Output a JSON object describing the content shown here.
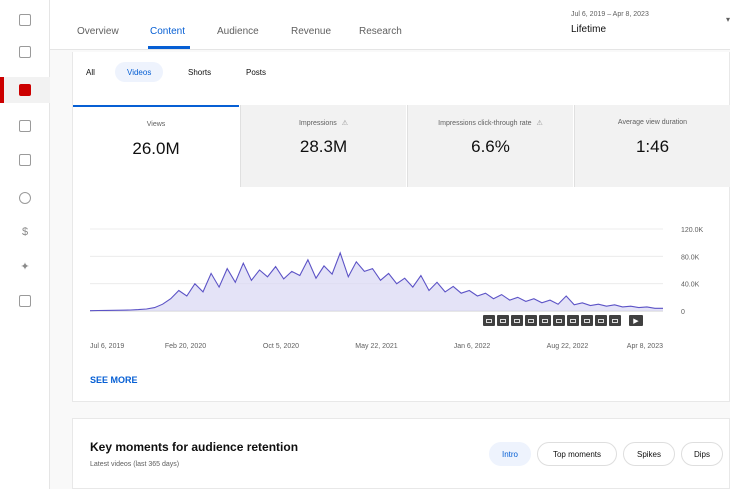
{
  "header": {
    "tabs": [
      {
        "label": "Overview",
        "active": false
      },
      {
        "label": "Content",
        "active": true
      },
      {
        "label": "Audience",
        "active": false
      },
      {
        "label": "Revenue",
        "active": false
      },
      {
        "label": "Research",
        "active": false
      }
    ],
    "date_range": "Jul 6, 2019 – Apr 8, 2023",
    "period": "Lifetime"
  },
  "filters": [
    {
      "label": "All",
      "selected": false
    },
    {
      "label": "Videos",
      "selected": true
    },
    {
      "label": "Shorts",
      "selected": false
    },
    {
      "label": "Posts",
      "selected": false
    }
  ],
  "metrics": [
    {
      "label": "Views",
      "value": "26.0M",
      "warning": false
    },
    {
      "label": "Impressions",
      "value": "28.3M",
      "warning": true
    },
    {
      "label": "Impressions click-through rate",
      "value": "6.6%",
      "warning": true
    },
    {
      "label": "Average view duration",
      "value": "1:46",
      "warning": false
    }
  ],
  "chart_data": {
    "type": "area",
    "y_tick_labels": [
      "120.0K",
      "80.0K",
      "40.0K",
      "0"
    ],
    "y_ticks": [
      120000,
      80000,
      40000,
      0
    ],
    "ylim": [
      0,
      120000
    ],
    "x_tick_labels": [
      "Jul 6, 2019",
      "Feb 20, 2020",
      "Oct 5, 2020",
      "May 22, 2021",
      "Jan 6, 2022",
      "Aug 22, 2022",
      "Apr 8, 2023"
    ],
    "grid": true,
    "series": [
      {
        "values": [
          500,
          700,
          900,
          1000,
          1200,
          1500,
          2000,
          3000,
          5000,
          10000,
          18000,
          30000,
          22000,
          40000,
          28000,
          55000,
          35000,
          62000,
          42000,
          70000,
          45000,
          60000,
          50000,
          65000,
          47000,
          58000,
          52000,
          75000,
          48000,
          66000,
          54000,
          85000,
          50000,
          72000,
          58000,
          62000,
          45000,
          55000,
          40000,
          48000,
          35000,
          52000,
          30000,
          42000,
          28000,
          36000,
          26000,
          30000,
          22000,
          26000,
          18000,
          24000,
          16000,
          20000,
          14000,
          18000,
          12000,
          16000,
          10000,
          22000,
          9000,
          12000,
          8000,
          10000,
          7000,
          9000,
          6000,
          7000,
          5000,
          6000,
          4000,
          4000
        ]
      }
    ],
    "color": "#5c53c6"
  },
  "chart_controls": {
    "play_icon": "play-icon",
    "count": 10
  },
  "see_more_label": "SEE MORE",
  "key_moments": {
    "title": "Key moments for audience retention",
    "subtitle": "Latest videos (last 365 days)",
    "chips": [
      {
        "label": "Intro",
        "selected": true
      },
      {
        "label": "Top moments",
        "selected": false
      },
      {
        "label": "Spikes",
        "selected": false
      },
      {
        "label": "Dips",
        "selected": false
      }
    ]
  },
  "sidebar": {
    "icons": [
      "dashboard-icon",
      "content-icon",
      "analytics-icon",
      "comments-icon",
      "subtitles-icon",
      "copyright-icon",
      "earn-icon",
      "customization-icon",
      "audio-library-icon"
    ],
    "active_index": 2
  }
}
